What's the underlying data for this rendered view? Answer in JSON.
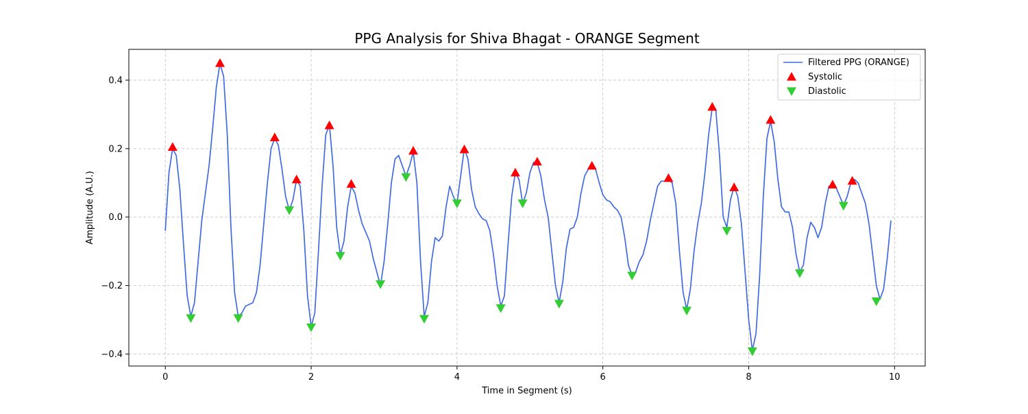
{
  "chart_data": {
    "type": "line",
    "title": "PPG Analysis for Shiva Bhagat - ORANGE Segment",
    "xlabel": "Time in Segment (s)",
    "ylabel": "Amplitude (A.U.)",
    "xlim": [
      -0.5,
      10.42
    ],
    "ylim": [
      -0.435,
      0.49
    ],
    "xticks": [
      0,
      2,
      4,
      6,
      8,
      10
    ],
    "yticks": [
      -0.4,
      -0.2,
      0.0,
      0.2,
      0.4
    ],
    "xtick_labels": [
      "0",
      "2",
      "4",
      "6",
      "8",
      "10"
    ],
    "ytick_labels": [
      "−0.4",
      "−0.2",
      "0.0",
      "0.2",
      "0.4"
    ],
    "grid": true,
    "legend_position": "top-right",
    "colors": {
      "line": "#4169e1",
      "systolic": "#ff0000",
      "diastolic": "#32cd32"
    },
    "series": [
      {
        "name": "Filtered PPG (ORANGE)",
        "kind": "line",
        "points": [
          [
            0,
            -0.04
          ],
          [
            0.05,
            0.13
          ],
          [
            0.1,
            0.2
          ],
          [
            0.15,
            0.18
          ],
          [
            0.2,
            0.08
          ],
          [
            0.25,
            -0.08
          ],
          [
            0.3,
            -0.23
          ],
          [
            0.35,
            -0.29
          ],
          [
            0.4,
            -0.25
          ],
          [
            0.45,
            -0.13
          ],
          [
            0.5,
            -0.01
          ],
          [
            0.6,
            0.15
          ],
          [
            0.65,
            0.26
          ],
          [
            0.7,
            0.38
          ],
          [
            0.75,
            0.45
          ],
          [
            0.8,
            0.41
          ],
          [
            0.85,
            0.24
          ],
          [
            0.9,
            -0.03
          ],
          [
            0.95,
            -0.22
          ],
          [
            1.0,
            -0.29
          ],
          [
            1.05,
            -0.28
          ],
          [
            1.1,
            -0.26
          ],
          [
            1.2,
            -0.25
          ],
          [
            1.25,
            -0.22
          ],
          [
            1.3,
            -0.14
          ],
          [
            1.35,
            -0.02
          ],
          [
            1.4,
            0.1
          ],
          [
            1.45,
            0.2
          ],
          [
            1.5,
            0.23
          ],
          [
            1.55,
            0.21
          ],
          [
            1.6,
            0.14
          ],
          [
            1.65,
            0.06
          ],
          [
            1.7,
            0.02
          ],
          [
            1.75,
            0.05
          ],
          [
            1.8,
            0.11
          ],
          [
            1.85,
            0.09
          ],
          [
            1.9,
            -0.04
          ],
          [
            1.95,
            -0.23
          ],
          [
            2.0,
            -0.32
          ],
          [
            2.05,
            -0.28
          ],
          [
            2.1,
            -0.1
          ],
          [
            2.15,
            0.09
          ],
          [
            2.2,
            0.24
          ],
          [
            2.25,
            0.27
          ],
          [
            2.3,
            0.15
          ],
          [
            2.35,
            -0.03
          ],
          [
            2.4,
            -0.11
          ],
          [
            2.45,
            -0.07
          ],
          [
            2.5,
            0.03
          ],
          [
            2.55,
            0.09
          ],
          [
            2.6,
            0.07
          ],
          [
            2.65,
            0.02
          ],
          [
            2.7,
            -0.02
          ],
          [
            2.8,
            -0.07
          ],
          [
            2.85,
            -0.12
          ],
          [
            2.95,
            -0.2
          ],
          [
            3.0,
            -0.13
          ],
          [
            3.05,
            -0.02
          ],
          [
            3.1,
            0.1
          ],
          [
            3.15,
            0.17
          ],
          [
            3.2,
            0.18
          ],
          [
            3.25,
            0.15
          ],
          [
            3.3,
            0.12
          ],
          [
            3.35,
            0.15
          ],
          [
            3.4,
            0.19
          ],
          [
            3.45,
            0.1
          ],
          [
            3.5,
            -0.13
          ],
          [
            3.55,
            -0.29
          ],
          [
            3.6,
            -0.25
          ],
          [
            3.65,
            -0.13
          ],
          [
            3.7,
            -0.06
          ],
          [
            3.75,
            -0.07
          ],
          [
            3.8,
            -0.055
          ],
          [
            3.85,
            0.03
          ],
          [
            3.9,
            0.09
          ],
          [
            3.95,
            0.06
          ],
          [
            4.0,
            0.04
          ],
          [
            4.05,
            0.12
          ],
          [
            4.1,
            0.2
          ],
          [
            4.15,
            0.17
          ],
          [
            4.2,
            0.08
          ],
          [
            4.25,
            0.03
          ],
          [
            4.3,
            0.01
          ],
          [
            4.35,
            -0.005
          ],
          [
            4.4,
            -0.01
          ],
          [
            4.45,
            -0.04
          ],
          [
            4.5,
            -0.11
          ],
          [
            4.55,
            -0.2
          ],
          [
            4.6,
            -0.26
          ],
          [
            4.65,
            -0.23
          ],
          [
            4.7,
            -0.08
          ],
          [
            4.75,
            0.06
          ],
          [
            4.8,
            0.13
          ],
          [
            4.85,
            0.11
          ],
          [
            4.9,
            0.04
          ],
          [
            4.95,
            0.07
          ],
          [
            5.0,
            0.13
          ],
          [
            5.05,
            0.16
          ],
          [
            5.1,
            0.16
          ],
          [
            5.15,
            0.12
          ],
          [
            5.2,
            0.05
          ],
          [
            5.25,
            0.0
          ],
          [
            5.3,
            -0.1
          ],
          [
            5.35,
            -0.2
          ],
          [
            5.4,
            -0.25
          ],
          [
            5.45,
            -0.19
          ],
          [
            5.5,
            -0.09
          ],
          [
            5.55,
            -0.035
          ],
          [
            5.6,
            -0.03
          ],
          [
            5.65,
            0.0
          ],
          [
            5.7,
            0.07
          ],
          [
            5.75,
            0.12
          ],
          [
            5.8,
            0.14
          ],
          [
            5.85,
            0.15
          ],
          [
            5.9,
            0.14
          ],
          [
            5.95,
            0.1
          ],
          [
            6.0,
            0.065
          ],
          [
            6.05,
            0.05
          ],
          [
            6.1,
            0.045
          ],
          [
            6.15,
            0.03
          ],
          [
            6.2,
            0.02
          ],
          [
            6.25,
            0.0
          ],
          [
            6.3,
            -0.06
          ],
          [
            6.35,
            -0.14
          ],
          [
            6.4,
            -0.17
          ],
          [
            6.45,
            -0.16
          ],
          [
            6.5,
            -0.13
          ],
          [
            6.55,
            -0.11
          ],
          [
            6.6,
            -0.07
          ],
          [
            6.65,
            -0.01
          ],
          [
            6.7,
            0.04
          ],
          [
            6.75,
            0.09
          ],
          [
            6.8,
            0.105
          ],
          [
            6.85,
            0.105
          ],
          [
            6.9,
            0.11
          ],
          [
            6.95,
            0.1
          ],
          [
            7.0,
            0.04
          ],
          [
            7.05,
            -0.1
          ],
          [
            7.1,
            -0.22
          ],
          [
            7.15,
            -0.27
          ],
          [
            7.2,
            -0.21
          ],
          [
            7.25,
            -0.1
          ],
          [
            7.3,
            -0.02
          ],
          [
            7.35,
            0.04
          ],
          [
            7.4,
            0.13
          ],
          [
            7.45,
            0.24
          ],
          [
            7.5,
            0.32
          ],
          [
            7.55,
            0.31
          ],
          [
            7.6,
            0.18
          ],
          [
            7.65,
            0.0
          ],
          [
            7.7,
            -0.03
          ],
          [
            7.75,
            0.05
          ],
          [
            7.8,
            0.09
          ],
          [
            7.85,
            0.06
          ],
          [
            7.9,
            -0.02
          ],
          [
            7.95,
            -0.16
          ],
          [
            8.0,
            -0.3
          ],
          [
            8.05,
            -0.39
          ],
          [
            8.1,
            -0.34
          ],
          [
            8.15,
            -0.17
          ],
          [
            8.2,
            0.06
          ],
          [
            8.25,
            0.23
          ],
          [
            8.3,
            0.28
          ],
          [
            8.35,
            0.22
          ],
          [
            8.4,
            0.11
          ],
          [
            8.45,
            0.03
          ],
          [
            8.5,
            0.015
          ],
          [
            8.55,
            0.015
          ],
          [
            8.6,
            -0.03
          ],
          [
            8.65,
            -0.11
          ],
          [
            8.7,
            -0.16
          ],
          [
            8.75,
            -0.14
          ],
          [
            8.8,
            -0.06
          ],
          [
            8.85,
            -0.015
          ],
          [
            8.9,
            -0.03
          ],
          [
            8.95,
            -0.06
          ],
          [
            9.0,
            -0.03
          ],
          [
            9.05,
            0.04
          ],
          [
            9.1,
            0.09
          ],
          [
            9.15,
            0.095
          ],
          [
            9.2,
            0.085
          ],
          [
            9.25,
            0.06
          ],
          [
            9.3,
            0.035
          ],
          [
            9.35,
            0.06
          ],
          [
            9.4,
            0.1
          ],
          [
            9.45,
            0.11
          ],
          [
            9.5,
            0.1
          ],
          [
            9.55,
            0.07
          ],
          [
            9.6,
            0.04
          ],
          [
            9.65,
            -0.02
          ],
          [
            9.7,
            -0.11
          ],
          [
            9.75,
            -0.2
          ],
          [
            9.8,
            -0.24
          ],
          [
            9.85,
            -0.21
          ],
          [
            9.9,
            -0.12
          ],
          [
            9.95,
            -0.01
          ]
        ]
      },
      {
        "name": "Systolic",
        "kind": "marker-up",
        "points": [
          [
            0.1,
            0.205
          ],
          [
            0.75,
            0.45
          ],
          [
            1.5,
            0.233
          ],
          [
            1.8,
            0.11
          ],
          [
            2.25,
            0.268
          ],
          [
            2.55,
            0.097
          ],
          [
            3.4,
            0.194
          ],
          [
            4.1,
            0.198
          ],
          [
            4.8,
            0.13
          ],
          [
            5.1,
            0.162
          ],
          [
            5.85,
            0.15
          ],
          [
            6.9,
            0.114
          ],
          [
            7.5,
            0.322
          ],
          [
            7.8,
            0.087
          ],
          [
            8.3,
            0.284
          ],
          [
            9.15,
            0.095
          ],
          [
            9.42,
            0.106
          ]
        ]
      },
      {
        "name": "Diastolic",
        "kind": "marker-down",
        "points": [
          [
            0.35,
            -0.295
          ],
          [
            1.0,
            -0.295
          ],
          [
            1.7,
            0.02
          ],
          [
            2.0,
            -0.322
          ],
          [
            2.4,
            -0.113
          ],
          [
            2.95,
            -0.196
          ],
          [
            3.3,
            0.117
          ],
          [
            3.55,
            -0.297
          ],
          [
            4.0,
            0.04
          ],
          [
            4.6,
            -0.266
          ],
          [
            4.9,
            0.04
          ],
          [
            5.4,
            -0.253
          ],
          [
            6.4,
            -0.171
          ],
          [
            7.15,
            -0.273
          ],
          [
            7.7,
            -0.04
          ],
          [
            8.05,
            -0.392
          ],
          [
            8.7,
            -0.164
          ],
          [
            9.3,
            0.033
          ],
          [
            9.75,
            -0.246
          ]
        ]
      }
    ]
  }
}
